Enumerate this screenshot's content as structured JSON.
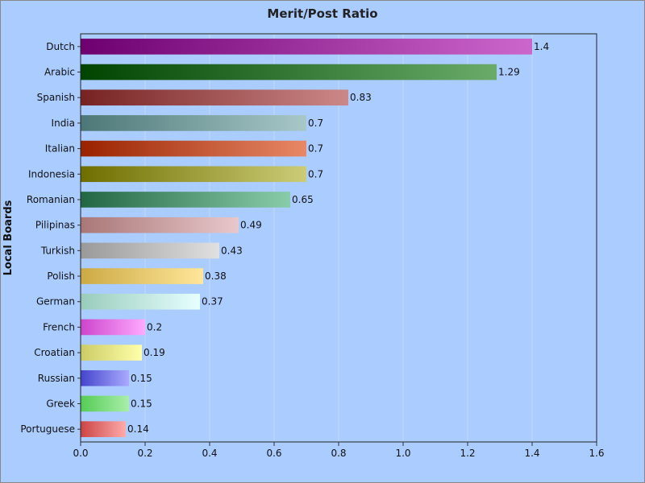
{
  "chart_data": {
    "type": "bar",
    "orientation": "horizontal",
    "title": "Merit/Post Ratio",
    "xlabel": "",
    "ylabel": "Local Boards",
    "xlim": [
      0,
      1.6
    ],
    "xticks": [
      "0.0",
      "0.2",
      "0.4",
      "0.6",
      "0.8",
      "1.0",
      "1.2",
      "1.4",
      "1.6"
    ],
    "grid": "vertical",
    "categories": [
      "Dutch",
      "Arabic",
      "Spanish",
      "India",
      "Italian",
      "Indonesia",
      "Romanian",
      "Pilipinas",
      "Turkish",
      "Polish",
      "German",
      "French",
      "Croatian",
      "Russian",
      "Greek",
      "Portuguese"
    ],
    "values": [
      1.4,
      1.29,
      0.83,
      0.7,
      0.7,
      0.7,
      0.65,
      0.49,
      0.43,
      0.38,
      0.37,
      0.2,
      0.19,
      0.15,
      0.15,
      0.14
    ],
    "value_labels": [
      "1.4",
      "1.29",
      "0.83",
      "0.7",
      "0.7",
      "0.7",
      "0.65",
      "0.49",
      "0.43",
      "0.38",
      "0.37",
      "0.2",
      "0.19",
      "0.15",
      "0.15",
      "0.14"
    ],
    "colors": [
      [
        "#6e0070",
        "#cc66cc"
      ],
      [
        "#004400",
        "#6aab6a"
      ],
      [
        "#772222",
        "#cc8888"
      ],
      [
        "#4d7777",
        "#a8c8c8"
      ],
      [
        "#992200",
        "#e88866"
      ],
      [
        "#6e6e00",
        "#cccc77"
      ],
      [
        "#226644",
        "#88ccaa"
      ],
      [
        "#aa7777",
        "#e8c8cc"
      ],
      [
        "#999999",
        "#e0e0e0"
      ],
      [
        "#ccaa44",
        "#ffe699"
      ],
      [
        "#99ccbb",
        "#e6ffff"
      ],
      [
        "#cc44cc",
        "#ffaaff"
      ],
      [
        "#cccc66",
        "#ffffaa"
      ],
      [
        "#4444cc",
        "#aaaaff"
      ],
      [
        "#55cc55",
        "#aaeeaa"
      ],
      [
        "#cc4444",
        "#ffaaaa"
      ]
    ]
  }
}
